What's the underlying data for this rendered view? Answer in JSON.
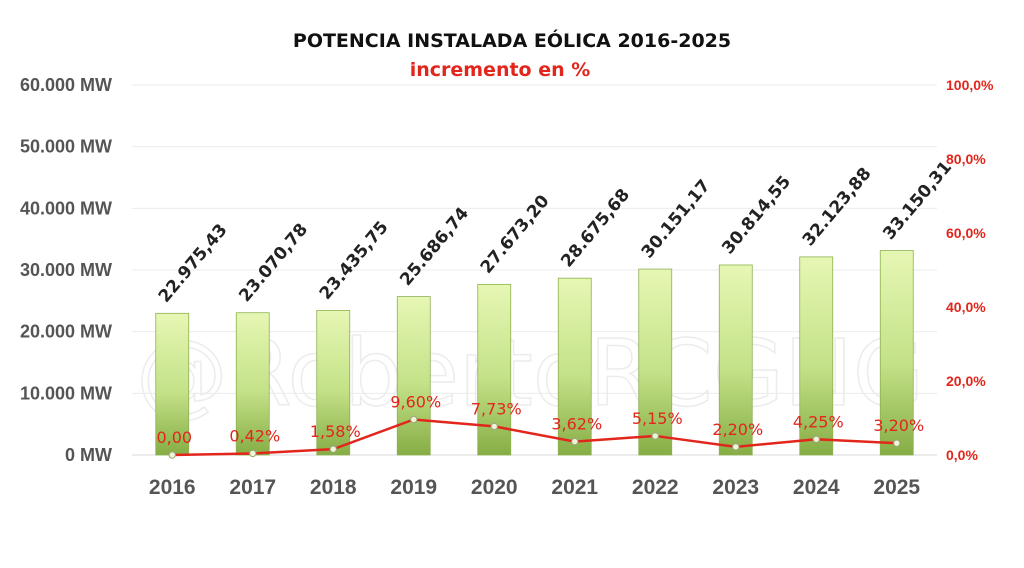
{
  "chart_data": {
    "type": "bar",
    "title": "POTENCIA INSTALADA EÓLICA 2016-2025",
    "subtitle": "incremento en %",
    "categories": [
      "2016",
      "2017",
      "2018",
      "2019",
      "2020",
      "2021",
      "2022",
      "2023",
      "2024",
      "2025"
    ],
    "series": [
      {
        "type": "bar",
        "axis": "left",
        "values": [
          22975.43,
          23070.78,
          23435.75,
          25686.74,
          27673.2,
          28675.68,
          30151.17,
          30814.55,
          32123.88,
          33150.31
        ],
        "labels": [
          "22.975,43",
          "23.070,78",
          "23.435,75",
          "25.686,74",
          "27.673,20",
          "28.675,68",
          "30.151,17",
          "30.814,55",
          "32.123,88",
          "33.150,31"
        ],
        "color": "#9cc45a"
      },
      {
        "type": "line",
        "axis": "right",
        "values": [
          0.0,
          0.42,
          1.58,
          9.6,
          7.73,
          3.62,
          5.15,
          2.2,
          4.25,
          3.2
        ],
        "labels": [
          "0,00",
          "0,42%",
          "1,58%",
          "9,60%",
          "7,73%",
          "3,62%",
          "5,15%",
          "2,20%",
          "4,25%",
          "3,20%"
        ],
        "color": "#e2261c"
      }
    ],
    "y_left": {
      "range": [
        0,
        60000
      ],
      "ticks": [
        "0 MW",
        "10.000 MW",
        "20.000 MW",
        "30.000 MW",
        "40.000 MW",
        "50.000 MW",
        "60.000 MW"
      ]
    },
    "y_right": {
      "range": [
        0,
        100
      ],
      "ticks": [
        "0,0%",
        "20,0%",
        "40,0%",
        "60,0%",
        "80,0%",
        "100,0%"
      ]
    },
    "grid": true,
    "legend": "none",
    "watermark": "@RobertoRCGNG"
  }
}
